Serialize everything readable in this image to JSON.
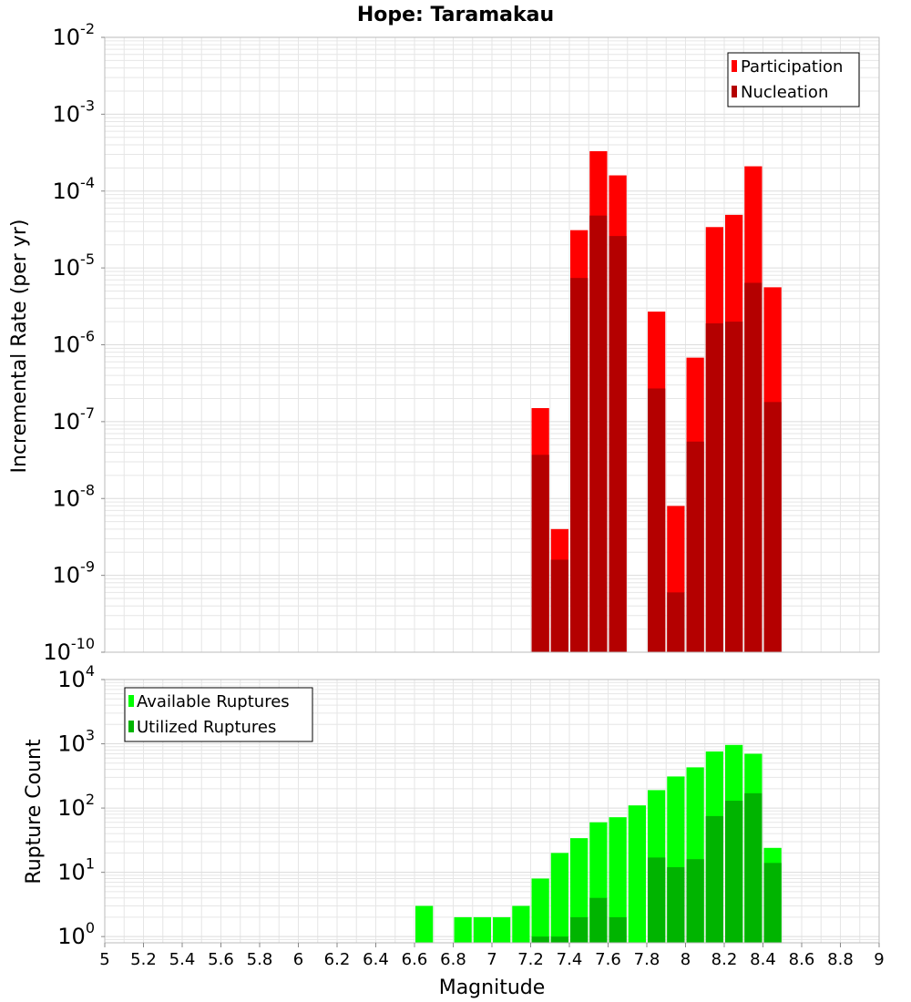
{
  "title": "Hope: Taramakau",
  "xlabel": "Magnitude",
  "colors": {
    "participation": "#ff0000",
    "nucleation": "#b40000",
    "available": "#00ff00",
    "utilized": "#00b400",
    "grid": "#e6e6e6",
    "frame": "#bbbbbb"
  },
  "chart_data": [
    {
      "type": "bar",
      "name": "rates",
      "ylabel": "Incremental Rate (per yr)",
      "yscale": "log",
      "ylim": [
        1e-10,
        0.01
      ],
      "xlim": [
        5,
        9
      ],
      "bin_width": 0.1,
      "legend_position": "top-right",
      "x": [
        7.25,
        7.35,
        7.45,
        7.55,
        7.65,
        7.85,
        7.95,
        8.05,
        8.15,
        8.25,
        8.35,
        8.45
      ],
      "series": [
        {
          "name": "Participation",
          "color_key": "participation",
          "values": [
            1.5e-07,
            4e-09,
            3.1e-05,
            0.00033,
            0.00016,
            2.7e-06,
            8e-09,
            6.8e-07,
            3.4e-05,
            4.9e-05,
            0.00021,
            5.6e-06
          ]
        },
        {
          "name": "Nucleation",
          "color_key": "nucleation",
          "values": [
            3.7e-08,
            1.6e-09,
            7.4e-06,
            4.8e-05,
            2.6e-05,
            2.7e-07,
            6e-10,
            5.5e-08,
            1.9e-06,
            2e-06,
            6.4e-06,
            1.8e-07
          ]
        }
      ]
    },
    {
      "type": "bar",
      "name": "counts",
      "ylabel": "Rupture Count",
      "yscale": "log",
      "ylim": [
        0.8,
        10000
      ],
      "xlim": [
        5,
        9
      ],
      "bin_width": 0.1,
      "legend_position": "top-left",
      "x": [
        6.65,
        6.85,
        6.95,
        7.05,
        7.15,
        7.25,
        7.35,
        7.45,
        7.55,
        7.65,
        7.75,
        7.85,
        7.95,
        8.05,
        8.15,
        8.25,
        8.35,
        8.45
      ],
      "series": [
        {
          "name": "Available Ruptures",
          "color_key": "available",
          "values": [
            3,
            2,
            2,
            2,
            3,
            8,
            20,
            34,
            60,
            72,
            110,
            190,
            310,
            430,
            760,
            960,
            700,
            24
          ]
        },
        {
          "name": "Utilized Ruptures",
          "color_key": "utilized",
          "values": [
            0,
            0,
            0,
            0,
            0,
            1,
            1,
            2,
            4,
            2,
            0,
            17,
            12,
            16,
            75,
            130,
            170,
            14
          ]
        }
      ]
    }
  ],
  "x_ticks": [
    "5",
    "5.2",
    "5.4",
    "5.6",
    "5.8",
    "6",
    "6.2",
    "6.4",
    "6.6",
    "6.8",
    "7",
    "7.2",
    "7.4",
    "7.6",
    "7.8",
    "8",
    "8.2",
    "8.4",
    "8.6",
    "8.8",
    "9"
  ],
  "y_ticks_top": [
    {
      "base": "10",
      "exp": "-10"
    },
    {
      "base": "10",
      "exp": "-9"
    },
    {
      "base": "10",
      "exp": "-8"
    },
    {
      "base": "10",
      "exp": "-7"
    },
    {
      "base": "10",
      "exp": "-6"
    },
    {
      "base": "10",
      "exp": "-5"
    },
    {
      "base": "10",
      "exp": "-4"
    },
    {
      "base": "10",
      "exp": "-3"
    },
    {
      "base": "10",
      "exp": "-2"
    }
  ],
  "y_ticks_bottom": [
    {
      "base": "10",
      "exp": "0"
    },
    {
      "base": "10",
      "exp": "1"
    },
    {
      "base": "10",
      "exp": "2"
    },
    {
      "base": "10",
      "exp": "3"
    },
    {
      "base": "10",
      "exp": "4"
    }
  ]
}
